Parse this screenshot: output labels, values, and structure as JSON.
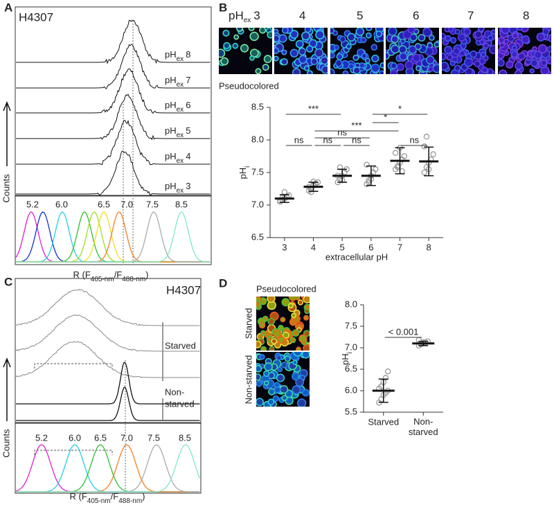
{
  "panel_labels": [
    "A",
    "B",
    "C",
    "D"
  ],
  "panel_a": {
    "title": "H4307",
    "traces": [
      {
        "main": "pH",
        "sub": "ex",
        "num": "8"
      },
      {
        "main": "pH",
        "sub": "ex",
        "num": "7"
      },
      {
        "main": "pH",
        "sub": "ex",
        "num": "6"
      },
      {
        "main": "pH",
        "sub": "ex",
        "num": "5"
      },
      {
        "main": "pH",
        "sub": "ex",
        "num": "4"
      },
      {
        "main": "pH",
        "sub": "ex",
        "num": "3"
      }
    ],
    "y_label": "Counts",
    "calibration": [
      "5.2",
      "6.0",
      "6.5",
      "7.0",
      "7.5",
      "8.5"
    ],
    "x_label": [
      "R (F",
      "405-nm",
      "/F",
      "488-nm",
      ")"
    ]
  },
  "panel_b": {
    "image_labels": [
      {
        "main": "pH",
        "sub": "ex",
        "num": "3"
      },
      {
        "num": "4"
      },
      {
        "num": "5"
      },
      {
        "num": "6"
      },
      {
        "num": "7"
      },
      {
        "num": "8"
      }
    ],
    "caption": "Pseudocolored"
  },
  "panel_c": {
    "title": "H4307",
    "trace_labels": [
      [
        "Starved"
      ],
      [
        "Non-",
        "starved"
      ]
    ],
    "y_label": "Counts",
    "calibration": [
      "5.2",
      "6.0",
      "6.5",
      "7.0",
      "7.5",
      "8.5"
    ],
    "x_label": [
      "R (F",
      "405-nm",
      "/F",
      "488-nm",
      ")"
    ]
  },
  "panel_d": {
    "caption": "Pseudocolored",
    "image_labels": [
      "Starved",
      "Non-starved"
    ]
  },
  "chart_data": [
    {
      "type": "dot",
      "categories": [
        "3",
        "4",
        "5",
        "6",
        "7",
        "8"
      ],
      "x_label": "extracellular pH",
      "y_label": {
        "text": "pH",
        "sub": "i"
      },
      "ylim": [
        6.5,
        8.5
      ],
      "yticks": [
        6.5,
        {
          "value": 7,
          "label": "7.0"
        },
        7.5,
        {
          "value": 8,
          "label": "8.0"
        },
        8.5
      ],
      "points": [
        [
          7.05,
          7.08,
          7.1,
          7.12,
          7.15,
          7.07,
          7.11,
          7.2
        ],
        [
          7.22,
          7.25,
          7.3,
          7.33,
          7.35,
          7.28,
          7.2,
          7.36
        ],
        [
          7.35,
          7.4,
          7.45,
          7.5,
          7.55,
          7.45,
          7.58,
          7.38
        ],
        [
          7.32,
          7.38,
          7.45,
          7.5,
          7.55,
          7.62,
          7.35,
          7.4
        ],
        [
          7.55,
          7.6,
          7.65,
          7.7,
          7.75,
          7.8,
          7.58,
          7.88,
          7.52
        ],
        [
          7.5,
          7.58,
          7.65,
          7.7,
          7.78,
          7.9,
          8.05,
          7.55
        ]
      ],
      "means": [
        7.1,
        7.28,
        7.45,
        7.45,
        7.68,
        7.67
      ],
      "sds": [
        0.06,
        0.07,
        0.1,
        0.15,
        0.2,
        0.22
      ],
      "comparisons": [
        {
          "between": [
            "3",
            "5"
          ],
          "label": "***"
        },
        {
          "between": [
            "6",
            "8"
          ],
          "label": "*"
        },
        {
          "between": [
            "6",
            "7"
          ],
          "label": "*"
        },
        {
          "between": [
            "4",
            "7"
          ],
          "label": "***"
        },
        {
          "between": [
            "4",
            "6"
          ],
          "label": "ns"
        },
        {
          "between": [
            "3",
            "4"
          ],
          "label": "ns"
        },
        {
          "between": [
            "4",
            "5"
          ],
          "label": "ns"
        },
        {
          "between": [
            "5",
            "6"
          ],
          "label": "ns"
        },
        {
          "between": [
            "7",
            "8"
          ],
          "label": "ns"
        }
      ]
    },
    {
      "type": "dot",
      "categories": [
        "Starved",
        "Non-starved"
      ],
      "y_label": {
        "text": "pH",
        "sub": "i"
      },
      "ylim": [
        5.5,
        8
      ],
      "yticks": [
        5.5,
        {
          "value": 6,
          "label": "6.0"
        },
        6.5,
        {
          "value": 7,
          "label": "7.0"
        },
        7.5,
        {
          "value": 8,
          "label": "8.0"
        }
      ],
      "points": [
        [
          5.72,
          5.8,
          5.9,
          5.95,
          6.0,
          6.05,
          6.1,
          6.2,
          6.3,
          6.45
        ],
        [
          7.05,
          7.08,
          7.1,
          7.12,
          7.15,
          7.18,
          7.1,
          7.13
        ]
      ],
      "means": [
        6.0,
        7.1
      ],
      "sds": [
        0.27,
        0.05
      ],
      "comparisons": [
        {
          "between": [
            "Starved",
            "Non-starved"
          ],
          "label": "< 0.001"
        }
      ]
    }
  ]
}
